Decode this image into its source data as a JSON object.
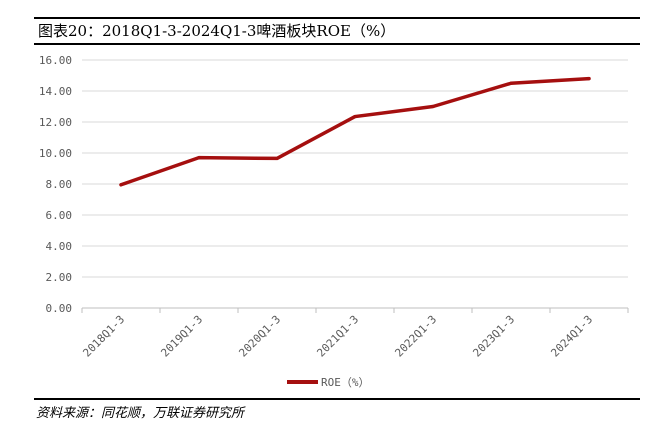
{
  "figure": {
    "title": "图表20：2018Q1-3-2024Q1-3啤酒板块ROE（%）",
    "source": "资料来源：同花顺，万联证券研究所"
  },
  "colors": {
    "series": "#a50f0f",
    "grid": "#d9d9d9",
    "axis": "#bfbfbf",
    "text": "#595959"
  },
  "chart_data": {
    "type": "line",
    "title": "",
    "xlabel": "",
    "ylabel": "",
    "categories": [
      "2018Q1-3",
      "2019Q1-3",
      "2020Q1-3",
      "2021Q1-3",
      "2022Q1-3",
      "2023Q1-3",
      "2024Q1-3"
    ],
    "series": [
      {
        "name": "ROE（%）",
        "values": [
          7.95,
          9.7,
          9.65,
          12.35,
          13.0,
          14.5,
          14.8
        ]
      }
    ],
    "ylim": [
      0,
      16
    ],
    "yticks": [
      "0.00",
      "2.00",
      "4.00",
      "6.00",
      "8.00",
      "10.00",
      "12.00",
      "14.00",
      "16.00"
    ],
    "grid": true,
    "legend_position": "bottom-center"
  }
}
